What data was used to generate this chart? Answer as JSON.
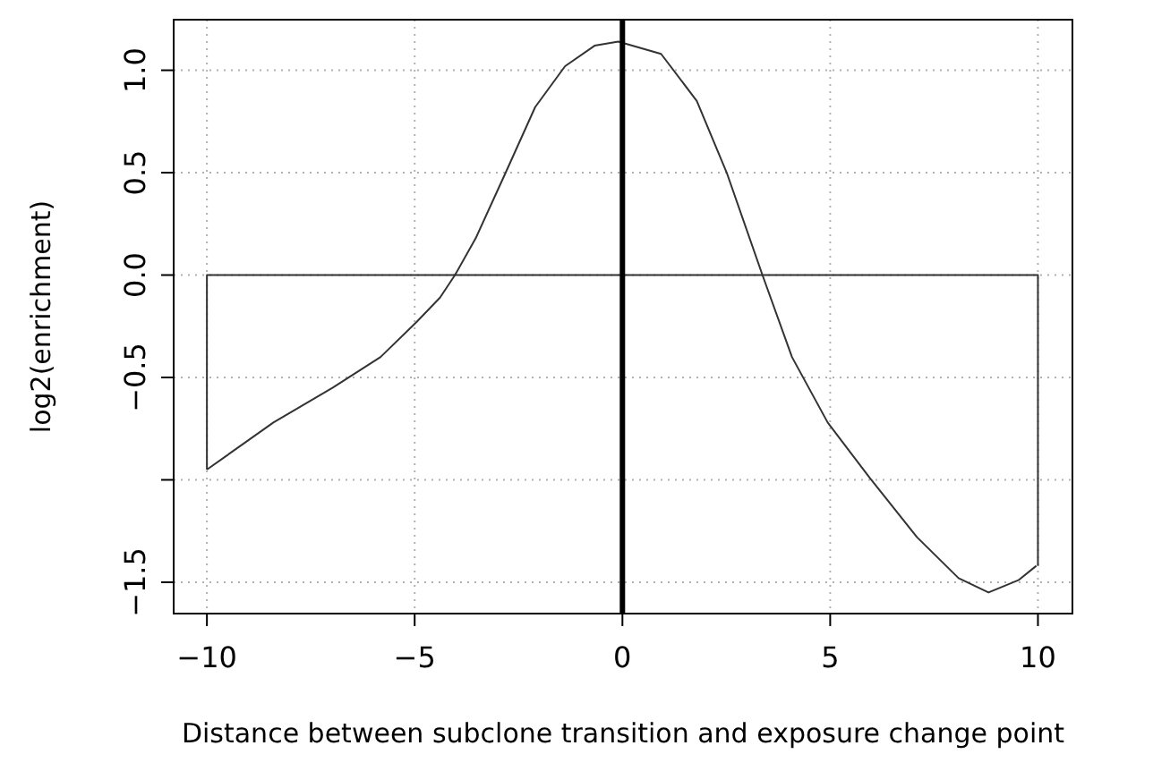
{
  "chart_data": {
    "type": "line",
    "xlabel": "Distance between subclone transition and exposure change point",
    "ylabel": "log2(enrichment)",
    "series": [
      {
        "color": "#333333",
        "x": [
          -10,
          -8.4,
          -6.97,
          -5.82,
          -4.96,
          -4.39,
          -4.03,
          -3.53,
          -2.81,
          -2.1,
          -1.38,
          -0.67,
          -0.1,
          0.93,
          1.79,
          2.51,
          3.37,
          4.08,
          4.94,
          5.95,
          7.09,
          8.09,
          8.81,
          9.53,
          9.96
        ],
        "values": [
          -0.95,
          -0.72,
          -0.55,
          -0.4,
          -0.23,
          -0.11,
          0,
          0.18,
          0.5,
          0.82,
          1.02,
          1.12,
          1.14,
          1.08,
          0.85,
          0.5,
          0,
          -0.4,
          -0.72,
          -0.99,
          -1.28,
          -1.48,
          -1.55,
          -1.49,
          -1.42
        ]
      },
      {
        "color": "#333333",
        "x": [
          -10,
          -10,
          10,
          10
        ],
        "values": [
          -0.95,
          0,
          0,
          -1.42
        ]
      }
    ],
    "xlim": [
      -10.8,
      10.83
    ],
    "xticks": [
      {
        "value": -10,
        "label": "−10"
      },
      {
        "value": -5,
        "label": "−5"
      },
      0,
      5,
      10
    ],
    "ylim": [
      -1.653,
      1.247
    ],
    "yticks": [
      {
        "value": -1.5,
        "label": "−1.5"
      },
      {
        "value": -1,
        "label": null
      },
      {
        "value": -0.5,
        "label": "−0.5"
      },
      {
        "value": 0,
        "label": "0.0"
      },
      {
        "value": 0.5,
        "label": "0.5"
      },
      {
        "value": 1,
        "label": "1.0"
      }
    ],
    "ref_lines": [
      {
        "axis": "x",
        "value": 0,
        "label": null,
        "color": "#000000"
      }
    ],
    "grid": true,
    "line_style": "solid",
    "marker": "none"
  }
}
